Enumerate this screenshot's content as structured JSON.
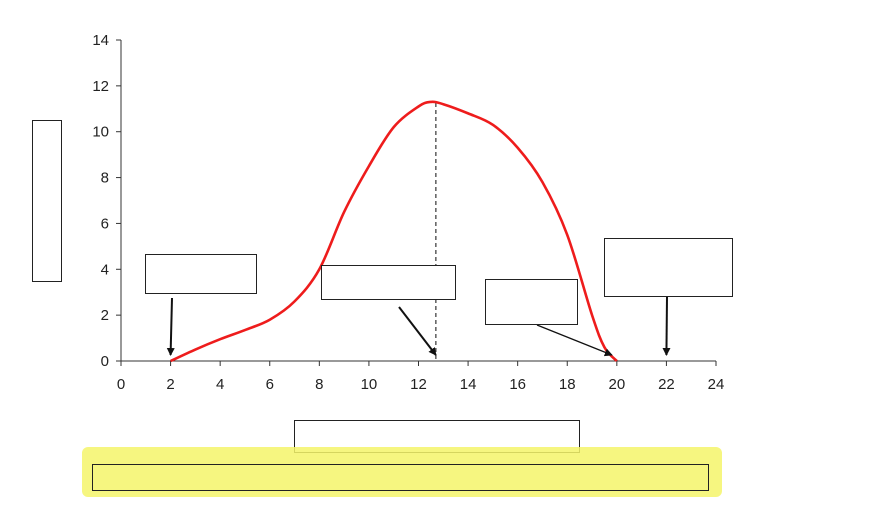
{
  "chart_data": {
    "type": "line",
    "title": "",
    "xlabel": "",
    "ylabel": "",
    "xlim": [
      0,
      24
    ],
    "ylim": [
      0,
      14
    ],
    "x_ticks": [
      0,
      2,
      4,
      6,
      8,
      10,
      12,
      14,
      16,
      18,
      20,
      22,
      24
    ],
    "y_ticks": [
      0,
      2,
      4,
      6,
      8,
      10,
      12,
      14
    ],
    "grid": false,
    "series": [
      {
        "color": "#ee1c1c",
        "x": [
          2,
          3,
          4,
          5,
          6,
          7,
          8,
          9,
          10,
          11,
          12,
          12.5,
          13,
          14,
          15,
          16,
          17,
          18,
          19,
          19.5,
          20
        ],
        "y": [
          0,
          0.5,
          0.95,
          1.35,
          1.8,
          2.6,
          4.0,
          6.5,
          8.5,
          10.2,
          11.1,
          11.3,
          11.2,
          10.8,
          10.3,
          9.3,
          7.8,
          5.5,
          2.0,
          0.6,
          0
        ]
      }
    ],
    "reference_line": {
      "x": 12.7,
      "style": "dashed",
      "color": "#444444"
    },
    "annotations": [
      {
        "label": "",
        "arrow_to": [
          2,
          0
        ]
      },
      {
        "label": "",
        "arrow_to": [
          12.7,
          0
        ]
      },
      {
        "label": "",
        "arrow_to": [
          19.8,
          0
        ]
      },
      {
        "label": "",
        "arrow_to": [
          22,
          0
        ]
      }
    ]
  }
}
